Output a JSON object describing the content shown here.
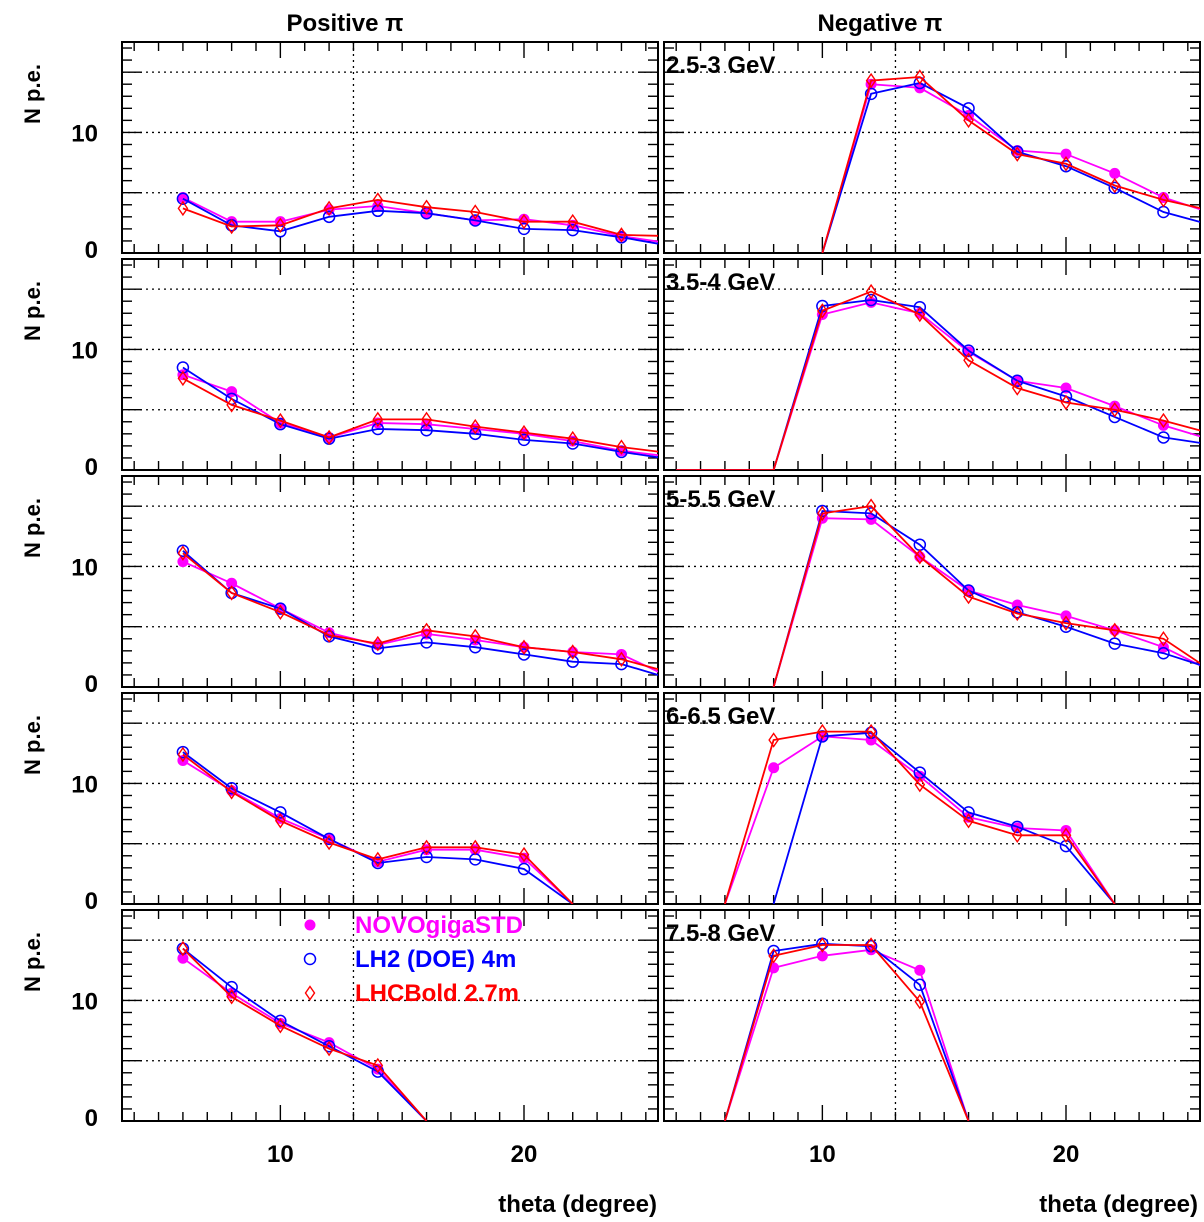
{
  "column_titles": [
    "Positive π",
    "Negative π"
  ],
  "x_axis_label": "theta  (degree)",
  "y_axis_label": "N p.e.",
  "colors": {
    "NOVOgigaSTD": "#ff00ff",
    "LH2 (DOE) 4m": "#0000ff",
    "LHCBold 2.7m": "#ff0000"
  },
  "legend": [
    {
      "label": "NOVOgigaSTD",
      "marker": "filled-circle",
      "color": "#ff00ff"
    },
    {
      "label": "LH2 (DOE) 4m",
      "marker": "open-circle",
      "color": "#0000ff"
    },
    {
      "label": "LHCBold 2.7m",
      "marker": "open-diamond",
      "color": "#ff0000"
    }
  ],
  "chart_data": [
    {
      "type": "line",
      "column": "Positive π",
      "row": 0,
      "annotation": "",
      "xlim": [
        3.5,
        25.5
      ],
      "ylim": [
        0,
        17.5
      ],
      "x_ticks": [
        10,
        20
      ],
      "y_ticks": [
        0,
        10
      ],
      "grid": {
        "x": [
          13
        ],
        "y": [
          5,
          10,
          15
        ]
      },
      "series": [
        {
          "name": "NOVOgigaSTD",
          "x": [
            6,
            8,
            10,
            12,
            14,
            16,
            18,
            20,
            22,
            24,
            26
          ],
          "y": [
            4.6,
            2.6,
            2.6,
            3.6,
            3.9,
            3.3,
            2.7,
            2.8,
            2.3,
            1.4,
            0.8
          ]
        },
        {
          "name": "LH2 (DOE) 4m",
          "x": [
            6,
            8,
            10,
            12,
            14,
            16,
            18,
            20,
            22,
            24,
            26
          ],
          "y": [
            4.5,
            2.3,
            1.8,
            3.0,
            3.5,
            3.3,
            2.7,
            2.0,
            1.9,
            1.3,
            0.6
          ]
        },
        {
          "name": "LHCBold 2.7m",
          "x": [
            6,
            8,
            10,
            12,
            14,
            16,
            18,
            20,
            22,
            24,
            26
          ],
          "y": [
            3.7,
            2.2,
            2.3,
            3.7,
            4.4,
            3.8,
            3.4,
            2.6,
            2.6,
            1.5,
            1.4
          ]
        }
      ]
    },
    {
      "type": "line",
      "column": "Negative π",
      "row": 0,
      "annotation": "2.5-3 GeV",
      "xlim": [
        3.5,
        25.5
      ],
      "ylim": [
        0,
        17.5
      ],
      "x_ticks": [
        10,
        20
      ],
      "y_ticks": [
        0,
        10
      ],
      "grid": {
        "x": [
          13
        ],
        "y": [
          5,
          10,
          15
        ]
      },
      "series": [
        {
          "name": "NOVOgigaSTD",
          "x": [
            10,
            12,
            14,
            16,
            18,
            20,
            22,
            24,
            26
          ],
          "y": [
            0,
            14.0,
            13.7,
            11.4,
            8.5,
            8.2,
            6.6,
            4.6,
            3.3
          ]
        },
        {
          "name": "LH2 (DOE) 4m",
          "x": [
            10,
            12,
            14,
            16,
            18,
            20,
            22,
            24,
            26
          ],
          "y": [
            0,
            13.2,
            14.1,
            12.0,
            8.4,
            7.2,
            5.4,
            3.4,
            2.3
          ]
        },
        {
          "name": "LHCBold 2.7m",
          "x": [
            10,
            12,
            14,
            16,
            18,
            20,
            22,
            24,
            26
          ],
          "y": [
            0,
            14.3,
            14.6,
            11.0,
            8.2,
            7.4,
            5.6,
            4.4,
            3.5
          ]
        }
      ]
    },
    {
      "type": "line",
      "column": "Positive π",
      "row": 1,
      "annotation": "",
      "xlim": [
        3.5,
        25.5
      ],
      "ylim": [
        0,
        17.5
      ],
      "x_ticks": [
        10,
        20
      ],
      "y_ticks": [
        0,
        10
      ],
      "grid": {
        "x": [
          13
        ],
        "y": [
          5,
          10,
          15
        ]
      },
      "series": [
        {
          "name": "NOVOgigaSTD",
          "x": [
            6,
            8,
            10,
            12,
            14,
            16,
            18,
            20,
            22,
            24,
            26
          ],
          "y": [
            7.9,
            6.5,
            3.9,
            2.7,
            3.9,
            3.8,
            3.4,
            3.0,
            2.4,
            1.6,
            1.1
          ]
        },
        {
          "name": "LH2 (DOE) 4m",
          "x": [
            6,
            8,
            10,
            12,
            14,
            16,
            18,
            20,
            22,
            24,
            26
          ],
          "y": [
            8.5,
            5.9,
            3.8,
            2.6,
            3.4,
            3.3,
            3.0,
            2.5,
            2.2,
            1.5,
            0.9
          ]
        },
        {
          "name": "LHCBold 2.7m",
          "x": [
            6,
            8,
            10,
            12,
            14,
            16,
            18,
            20,
            22,
            24,
            26
          ],
          "y": [
            7.6,
            5.4,
            4.1,
            2.7,
            4.2,
            4.2,
            3.6,
            3.1,
            2.6,
            1.9,
            1.4
          ]
        }
      ]
    },
    {
      "type": "line",
      "column": "Negative π",
      "row": 1,
      "annotation": "3.5-4 GeV",
      "xlim": [
        3.5,
        25.5
      ],
      "ylim": [
        0,
        17.5
      ],
      "x_ticks": [
        10,
        20
      ],
      "y_ticks": [
        0,
        10
      ],
      "grid": {
        "x": [
          13
        ],
        "y": [
          5,
          10,
          15
        ]
      },
      "series": [
        {
          "name": "NOVOgigaSTD",
          "x": [
            4,
            8,
            10,
            12,
            14,
            16,
            18,
            20,
            22,
            24,
            26
          ],
          "y": [
            0,
            0,
            12.9,
            13.9,
            13.0,
            9.8,
            7.4,
            6.8,
            5.3,
            3.7,
            2.5
          ]
        },
        {
          "name": "LH2 (DOE) 4m",
          "x": [
            4,
            8,
            10,
            12,
            14,
            16,
            18,
            20,
            22,
            24,
            26
          ],
          "y": [
            0,
            0,
            13.6,
            14.1,
            13.5,
            9.9,
            7.4,
            6.1,
            4.4,
            2.7,
            2.1
          ]
        },
        {
          "name": "LHCBold 2.7m",
          "x": [
            4,
            8,
            10,
            12,
            14,
            16,
            18,
            20,
            22,
            24,
            26
          ],
          "y": [
            0,
            0,
            13.2,
            14.8,
            12.9,
            9.1,
            6.8,
            5.6,
            5.0,
            4.1,
            3.0
          ]
        }
      ]
    },
    {
      "type": "line",
      "column": "Positive π",
      "row": 2,
      "annotation": "",
      "xlim": [
        3.5,
        25.5
      ],
      "ylim": [
        0,
        17.5
      ],
      "x_ticks": [
        10,
        20
      ],
      "y_ticks": [
        0,
        10
      ],
      "grid": {
        "x": [
          13
        ],
        "y": [
          5,
          10,
          15
        ]
      },
      "series": [
        {
          "name": "NOVOgigaSTD",
          "x": [
            6,
            8,
            10,
            12,
            14,
            16,
            18,
            20,
            22,
            24,
            26
          ],
          "y": [
            10.4,
            8.6,
            6.5,
            4.5,
            3.5,
            4.4,
            3.9,
            3.3,
            2.9,
            2.7,
            0.8
          ]
        },
        {
          "name": "LH2 (DOE) 4m",
          "x": [
            6,
            8,
            10,
            12,
            14,
            16,
            18,
            20,
            22,
            24,
            26
          ],
          "y": [
            11.3,
            7.8,
            6.5,
            4.2,
            3.2,
            3.7,
            3.3,
            2.7,
            2.1,
            1.9,
            0.7
          ]
        },
        {
          "name": "LHCBold 2.7m",
          "x": [
            6,
            8,
            10,
            12,
            14,
            16,
            18,
            20,
            22,
            24,
            26
          ],
          "y": [
            11.1,
            7.8,
            6.2,
            4.3,
            3.6,
            4.7,
            4.2,
            3.3,
            2.9,
            2.3,
            1.2
          ]
        }
      ]
    },
    {
      "type": "line",
      "column": "Negative π",
      "row": 2,
      "annotation": "5-5.5 GeV",
      "xlim": [
        3.5,
        25.5
      ],
      "ylim": [
        0,
        17.5
      ],
      "x_ticks": [
        10,
        20
      ],
      "y_ticks": [
        0,
        10
      ],
      "grid": {
        "x": [
          13
        ],
        "y": [
          5,
          10,
          15
        ]
      },
      "series": [
        {
          "name": "NOVOgigaSTD",
          "x": [
            8,
            10,
            12,
            14,
            16,
            18,
            20,
            22,
            24,
            26
          ],
          "y": [
            0,
            14.0,
            13.9,
            10.8,
            8.0,
            6.8,
            5.9,
            4.7,
            3.3,
            1.3
          ]
        },
        {
          "name": "LH2 (DOE) 4m",
          "x": [
            8,
            10,
            12,
            14,
            16,
            18,
            20,
            22,
            24,
            26
          ],
          "y": [
            0,
            14.6,
            14.4,
            11.8,
            8.0,
            6.2,
            5.0,
            3.6,
            2.8,
            1.5
          ]
        },
        {
          "name": "LHCBold 2.7m",
          "x": [
            8,
            10,
            12,
            14,
            16,
            18,
            20,
            22,
            24,
            26
          ],
          "y": [
            0,
            14.4,
            15.0,
            10.8,
            7.5,
            6.1,
            5.3,
            4.7,
            4.0,
            1.3
          ]
        }
      ]
    },
    {
      "type": "line",
      "column": "Positive π",
      "row": 3,
      "annotation": "",
      "xlim": [
        3.5,
        25.5
      ],
      "ylim": [
        0,
        17.5
      ],
      "x_ticks": [
        10,
        20
      ],
      "y_ticks": [
        0,
        10
      ],
      "grid": {
        "x": [
          13
        ],
        "y": [
          5,
          10,
          15
        ]
      },
      "series": [
        {
          "name": "NOVOgigaSTD",
          "x": [
            6,
            8,
            10,
            12,
            14,
            16,
            18,
            20,
            22
          ],
          "y": [
            11.9,
            9.4,
            7.1,
            5.4,
            3.5,
            4.5,
            4.5,
            3.8,
            0
          ]
        },
        {
          "name": "LH2 (DOE) 4m",
          "x": [
            6,
            8,
            10,
            12,
            14,
            16,
            18,
            20,
            22
          ],
          "y": [
            12.6,
            9.6,
            7.6,
            5.4,
            3.4,
            3.9,
            3.7,
            2.9,
            0
          ]
        },
        {
          "name": "LHCBold 2.7m",
          "x": [
            6,
            8,
            10,
            12,
            14,
            16,
            18,
            20,
            22
          ],
          "y": [
            12.4,
            9.3,
            6.9,
            5.1,
            3.7,
            4.7,
            4.7,
            4.1,
            0
          ]
        }
      ]
    },
    {
      "type": "line",
      "column": "Negative π",
      "row": 3,
      "annotation": "6-6.5 GeV",
      "xlim": [
        3.5,
        25.5
      ],
      "ylim": [
        0,
        17.5
      ],
      "x_ticks": [
        10,
        20
      ],
      "y_ticks": [
        0,
        10
      ],
      "grid": {
        "x": [
          13
        ],
        "y": [
          5,
          10,
          15
        ]
      },
      "series": [
        {
          "name": "NOVOgigaSTD",
          "x": [
            6,
            8,
            10,
            12,
            14,
            16,
            18,
            20,
            22
          ],
          "y": [
            0,
            11.3,
            13.9,
            13.6,
            10.6,
            7.2,
            6.3,
            6.1,
            0
          ]
        },
        {
          "name": "LH2 (DOE) 4m",
          "x": [
            8,
            10,
            12,
            14,
            16,
            18,
            20,
            22
          ],
          "y": [
            0,
            13.9,
            14.2,
            10.9,
            7.6,
            6.4,
            4.8,
            0
          ]
        },
        {
          "name": "LHCBold 2.7m",
          "x": [
            6,
            8,
            10,
            12,
            14,
            16,
            18,
            20,
            22
          ],
          "y": [
            0,
            13.6,
            14.3,
            14.3,
            9.9,
            6.9,
            5.7,
            5.7,
            0
          ]
        }
      ]
    },
    {
      "type": "line",
      "column": "Positive π",
      "row": 4,
      "annotation": "",
      "xlim": [
        3.5,
        25.5
      ],
      "ylim": [
        0,
        17.5
      ],
      "x_ticks": [
        10,
        20
      ],
      "y_ticks": [
        0,
        10
      ],
      "grid": {
        "x": [
          13
        ],
        "y": [
          5,
          10,
          15
        ]
      },
      "series": [
        {
          "name": "NOVOgigaSTD",
          "x": [
            6,
            8,
            10,
            12,
            14,
            16
          ],
          "y": [
            13.5,
            10.6,
            8.1,
            6.5,
            4.3,
            0
          ]
        },
        {
          "name": "LH2 (DOE) 4m",
          "x": [
            6,
            8,
            10,
            12,
            14,
            16
          ],
          "y": [
            14.3,
            11.1,
            8.3,
            6.2,
            4.1,
            0
          ]
        },
        {
          "name": "LHCBold 2.7m",
          "x": [
            6,
            8,
            10,
            12,
            14,
            16
          ],
          "y": [
            14.3,
            10.3,
            7.9,
            6.0,
            4.6,
            0
          ]
        }
      ]
    },
    {
      "type": "line",
      "column": "Negative π",
      "row": 4,
      "annotation": "7.5-8 GeV",
      "xlim": [
        3.5,
        25.5
      ],
      "ylim": [
        0,
        17.5
      ],
      "x_ticks": [
        10,
        20
      ],
      "y_ticks": [
        0,
        10
      ],
      "grid": {
        "x": [
          13
        ],
        "y": [
          5,
          10,
          15
        ]
      },
      "series": [
        {
          "name": "NOVOgigaSTD",
          "x": [
            6,
            8,
            10,
            12,
            14,
            16
          ],
          "y": [
            0,
            12.7,
            13.7,
            14.2,
            12.5,
            0
          ]
        },
        {
          "name": "LH2 (DOE) 4m",
          "x": [
            6,
            8,
            10,
            12,
            14,
            16
          ],
          "y": [
            0,
            14.1,
            14.7,
            14.5,
            11.3,
            0
          ]
        },
        {
          "name": "LHCBold 2.7m",
          "x": [
            6,
            8,
            10,
            12,
            14,
            16
          ],
          "y": [
            0,
            13.7,
            14.6,
            14.6,
            9.9,
            0
          ]
        }
      ]
    }
  ]
}
